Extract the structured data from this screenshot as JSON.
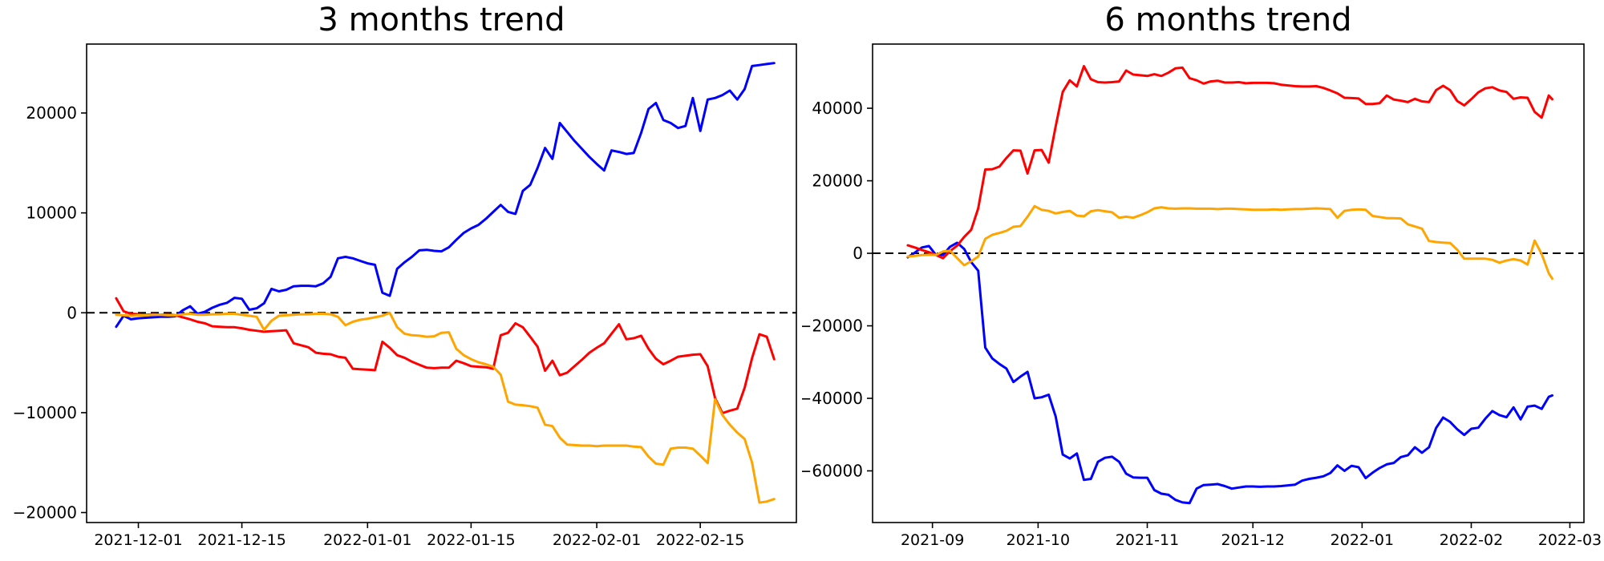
{
  "figure": {
    "background": "#ffffff"
  },
  "chart_data": [
    {
      "type": "line",
      "title": "3 months trend",
      "xlabel": "",
      "ylabel": "",
      "grid": false,
      "legend": null,
      "zero_line": {
        "present": true,
        "color": "#000000",
        "style": "dashed"
      },
      "xlim": [
        "2021-11-24",
        "2022-02-28"
      ],
      "ylim": [
        -21000,
        26900
      ],
      "y_ticks": [
        -20000,
        -10000,
        0,
        10000,
        20000
      ],
      "x_ticks": [
        {
          "date": "2021-12-01",
          "label": "2021-12-01"
        },
        {
          "date": "2021-12-15",
          "label": "2021-12-15"
        },
        {
          "date": "2022-01-01",
          "label": "2022-01-01"
        },
        {
          "date": "2022-01-15",
          "label": "2022-01-15"
        },
        {
          "date": "2022-02-01",
          "label": "2022-02-01"
        },
        {
          "date": "2022-02-15",
          "label": "2022-02-15"
        }
      ],
      "x": [
        "2021-11-28",
        "2021-11-29",
        "2021-11-30",
        "2021-12-01",
        "2021-12-02",
        "2021-12-03",
        "2021-12-04",
        "2021-12-05",
        "2021-12-06",
        "2021-12-07",
        "2021-12-08",
        "2021-12-09",
        "2021-12-10",
        "2021-12-11",
        "2021-12-12",
        "2021-12-13",
        "2021-12-14",
        "2021-12-15",
        "2021-12-16",
        "2021-12-17",
        "2021-12-18",
        "2021-12-19",
        "2021-12-20",
        "2021-12-21",
        "2021-12-22",
        "2021-12-23",
        "2021-12-24",
        "2021-12-25",
        "2021-12-26",
        "2021-12-27",
        "2021-12-28",
        "2021-12-29",
        "2021-12-30",
        "2021-12-31",
        "2022-01-01",
        "2022-01-02",
        "2022-01-03",
        "2022-01-04",
        "2022-01-05",
        "2022-01-06",
        "2022-01-07",
        "2022-01-08",
        "2022-01-09",
        "2022-01-10",
        "2022-01-11",
        "2022-01-12",
        "2022-01-13",
        "2022-01-14",
        "2022-01-15",
        "2022-01-16",
        "2022-01-17",
        "2022-01-18",
        "2022-01-19",
        "2022-01-20",
        "2022-01-21",
        "2022-01-22",
        "2022-01-23",
        "2022-01-24",
        "2022-01-25",
        "2022-01-26",
        "2022-01-27",
        "2022-01-28",
        "2022-01-29",
        "2022-01-30",
        "2022-01-31",
        "2022-02-01",
        "2022-02-02",
        "2022-02-03",
        "2022-02-04",
        "2022-02-05",
        "2022-02-06",
        "2022-02-07",
        "2022-02-08",
        "2022-02-09",
        "2022-02-10",
        "2022-02-11",
        "2022-02-12",
        "2022-02-13",
        "2022-02-14",
        "2022-02-15",
        "2022-02-16",
        "2022-02-17",
        "2022-02-18",
        "2022-02-19",
        "2022-02-20",
        "2022-02-21",
        "2022-02-22",
        "2022-02-23",
        "2022-02-24",
        "2022-02-25"
      ],
      "series": [
        {
          "name": "blue",
          "color": "#0000ff",
          "y": [
            -1400,
            -300,
            -650,
            -550,
            -500,
            -450,
            -400,
            -400,
            -350,
            250,
            650,
            -100,
            100,
            500,
            800,
            1000,
            1500,
            1400,
            300,
            450,
            950,
            2400,
            2150,
            2300,
            2650,
            2700,
            2700,
            2650,
            2950,
            3600,
            5450,
            5600,
            5450,
            5200,
            4950,
            4800,
            2000,
            1700,
            4400,
            5050,
            5600,
            6250,
            6300,
            6200,
            6150,
            6550,
            7300,
            8000,
            8450,
            8800,
            9400,
            10100,
            10800,
            10100,
            9900,
            12200,
            12800,
            14500,
            16500,
            15400,
            19000,
            18100,
            17200,
            16400,
            15600,
            14900,
            14250,
            16250,
            16100,
            15900,
            16000,
            18000,
            20400,
            21000,
            19300,
            19000,
            18500,
            18700,
            21500,
            18200,
            21350,
            21500,
            21800,
            22250,
            21350,
            22400,
            24700,
            24800,
            24900,
            25000
          ]
        },
        {
          "name": "red",
          "color": "#ff0000",
          "y": [
            1450,
            150,
            -100,
            -150,
            -200,
            -150,
            -200,
            -150,
            -250,
            -450,
            -650,
            -900,
            -1050,
            -1350,
            -1400,
            -1450,
            -1450,
            -1550,
            -1700,
            -1800,
            -1900,
            -1850,
            -1800,
            -1750,
            -3050,
            -3250,
            -3450,
            -4000,
            -4100,
            -4150,
            -4400,
            -4500,
            -5600,
            -5650,
            -5700,
            -5750,
            -2900,
            -3500,
            -4250,
            -4500,
            -4900,
            -5200,
            -5500,
            -5550,
            -5500,
            -5500,
            -4800,
            -5050,
            -5350,
            -5400,
            -5450,
            -5600,
            -2250,
            -2000,
            -1050,
            -1450,
            -2400,
            -3400,
            -5800,
            -4800,
            -6250,
            -6000,
            -5350,
            -4700,
            -4000,
            -3500,
            -3050,
            -2100,
            -1150,
            -2650,
            -2550,
            -2300,
            -3600,
            -4600,
            -5150,
            -4800,
            -4400,
            -4300,
            -4200,
            -4150,
            -5350,
            -8550,
            -10050,
            -9800,
            -9600,
            -7500,
            -4550,
            -2150,
            -2400,
            -4650
          ]
        },
        {
          "name": "orange",
          "color": "#ffa500",
          "y": [
            -200,
            -250,
            -300,
            -250,
            -250,
            -200,
            -200,
            -250,
            -250,
            -150,
            -100,
            -200,
            -200,
            -150,
            -150,
            -100,
            -100,
            -200,
            -300,
            -400,
            -1700,
            -800,
            -300,
            -250,
            -200,
            -150,
            -150,
            -100,
            -100,
            -150,
            -400,
            -1250,
            -900,
            -700,
            -600,
            -450,
            -300,
            0,
            -1450,
            -2100,
            -2250,
            -2300,
            -2400,
            -2350,
            -2000,
            -1950,
            -3600,
            -4250,
            -4650,
            -4950,
            -5150,
            -5400,
            -6200,
            -8900,
            -9200,
            -9250,
            -9350,
            -9500,
            -11200,
            -11350,
            -12500,
            -13200,
            -13250,
            -13300,
            -13300,
            -13350,
            -13300,
            -13300,
            -13300,
            -13300,
            -13400,
            -13450,
            -14400,
            -15100,
            -15200,
            -13600,
            -13500,
            -13500,
            -13600,
            -14300,
            -15050,
            -8650,
            -10250,
            -11200,
            -12000,
            -12650,
            -15000,
            -19000,
            -18900,
            -18650
          ]
        }
      ]
    },
    {
      "type": "line",
      "title": "6 months trend",
      "xlabel": "",
      "ylabel": "",
      "grid": false,
      "legend": null,
      "zero_line": {
        "present": true,
        "color": "#000000",
        "style": "dashed"
      },
      "xlim": [
        "2021-08-15",
        "2022-03-05"
      ],
      "ylim": [
        -74250,
        57700
      ],
      "y_ticks": [
        -60000,
        -40000,
        -20000,
        0,
        20000,
        40000
      ],
      "x_ticks": [
        {
          "date": "2021-09-01",
          "label": "2021-09"
        },
        {
          "date": "2021-10-01",
          "label": "2021-10"
        },
        {
          "date": "2021-11-01",
          "label": "2021-11"
        },
        {
          "date": "2021-12-01",
          "label": "2021-12"
        },
        {
          "date": "2022-01-01",
          "label": "2022-01"
        },
        {
          "date": "2022-02-01",
          "label": "2022-02"
        },
        {
          "date": "2022-03-01",
          "label": "2022-03"
        }
      ],
      "x": [
        "2021-08-25",
        "2021-08-27",
        "2021-08-29",
        "2021-08-31",
        "2021-09-02",
        "2021-09-04",
        "2021-09-06",
        "2021-09-08",
        "2021-09-10",
        "2021-09-12",
        "2021-09-14",
        "2021-09-16",
        "2021-09-18",
        "2021-09-20",
        "2021-09-22",
        "2021-09-24",
        "2021-09-26",
        "2021-09-28",
        "2021-09-30",
        "2021-10-02",
        "2021-10-04",
        "2021-10-06",
        "2021-10-08",
        "2021-10-10",
        "2021-10-12",
        "2021-10-14",
        "2021-10-16",
        "2021-10-18",
        "2021-10-20",
        "2021-10-22",
        "2021-10-24",
        "2021-10-26",
        "2021-10-28",
        "2021-10-30",
        "2021-11-01",
        "2021-11-03",
        "2021-11-05",
        "2021-11-07",
        "2021-11-09",
        "2021-11-11",
        "2021-11-13",
        "2021-11-15",
        "2021-11-17",
        "2021-11-19",
        "2021-11-21",
        "2021-11-23",
        "2021-11-25",
        "2021-11-27",
        "2021-11-29",
        "2021-12-01",
        "2021-12-03",
        "2021-12-05",
        "2021-12-07",
        "2021-12-09",
        "2021-12-11",
        "2021-12-13",
        "2021-12-15",
        "2021-12-17",
        "2021-12-19",
        "2021-12-21",
        "2021-12-23",
        "2021-12-25",
        "2021-12-27",
        "2021-12-29",
        "2021-12-31",
        "2022-01-02",
        "2022-01-04",
        "2022-01-06",
        "2022-01-08",
        "2022-01-10",
        "2022-01-12",
        "2022-01-14",
        "2022-01-16",
        "2022-01-18",
        "2022-01-20",
        "2022-01-22",
        "2022-01-24",
        "2022-01-26",
        "2022-01-28",
        "2022-01-30",
        "2022-02-01",
        "2022-02-03",
        "2022-02-05",
        "2022-02-07",
        "2022-02-09",
        "2022-02-11",
        "2022-02-13",
        "2022-02-15",
        "2022-02-17",
        "2022-02-19",
        "2022-02-21",
        "2022-02-23",
        "2022-02-24"
      ],
      "series": [
        {
          "name": "blue",
          "color": "#0000ff",
          "y": [
            -1100,
            200,
            1600,
            2000,
            -450,
            -500,
            1800,
            2900,
            1200,
            -2450,
            -4800,
            -26000,
            -29000,
            -30500,
            -31800,
            -35500,
            -34000,
            -32700,
            -40000,
            -39700,
            -39000,
            -45000,
            -55500,
            -56600,
            -55200,
            -62500,
            -62200,
            -57500,
            -56400,
            -56100,
            -57500,
            -60800,
            -61800,
            -61900,
            -61900,
            -65300,
            -66300,
            -66600,
            -68000,
            -68700,
            -68900,
            -64900,
            -63900,
            -63800,
            -63650,
            -64200,
            -64900,
            -64600,
            -64300,
            -64300,
            -64400,
            -64300,
            -64300,
            -64200,
            -64000,
            -63800,
            -62700,
            -62200,
            -61900,
            -61500,
            -60600,
            -58500,
            -60000,
            -58600,
            -59000,
            -62000,
            -60500,
            -59200,
            -58200,
            -57800,
            -56200,
            -55700,
            -53500,
            -55000,
            -53500,
            -48200,
            -45300,
            -46500,
            -48500,
            -50100,
            -48400,
            -48100,
            -45600,
            -43500,
            -44600,
            -45200,
            -42500,
            -45800,
            -42300,
            -42000,
            -42900,
            -39600,
            -39200
          ]
        },
        {
          "name": "red",
          "color": "#ff0000",
          "y": [
            2200,
            1600,
            900,
            300,
            -450,
            -1350,
            600,
            2100,
            4500,
            6500,
            12400,
            23100,
            23200,
            23900,
            26300,
            28400,
            28300,
            22000,
            28400,
            28500,
            25000,
            35000,
            44500,
            47700,
            46000,
            51600,
            48000,
            47200,
            47100,
            47200,
            47400,
            50400,
            49300,
            49100,
            48900,
            49400,
            48900,
            49800,
            51000,
            51200,
            48300,
            47700,
            46800,
            47400,
            47600,
            47100,
            47100,
            47200,
            46900,
            47000,
            47000,
            47000,
            46900,
            46500,
            46300,
            46100,
            46000,
            46000,
            46100,
            45600,
            44900,
            44100,
            42900,
            42800,
            42700,
            41200,
            41200,
            41400,
            43500,
            42400,
            42100,
            41700,
            42600,
            41900,
            41700,
            45000,
            46200,
            45000,
            42000,
            40800,
            42500,
            44400,
            45500,
            45800,
            44900,
            44500,
            42600,
            43000,
            42900,
            39000,
            37400,
            43500,
            42500
          ]
        },
        {
          "name": "orange",
          "color": "#ffa500",
          "y": [
            -900,
            -700,
            -500,
            -400,
            -450,
            500,
            700,
            -1300,
            -3300,
            -2200,
            -900,
            4000,
            5100,
            5600,
            6200,
            7300,
            7500,
            10100,
            13000,
            12000,
            11700,
            11000,
            11400,
            11700,
            10400,
            10200,
            11600,
            11900,
            11600,
            11300,
            9800,
            10100,
            9800,
            10500,
            11300,
            12400,
            12700,
            12400,
            12300,
            12400,
            12400,
            12300,
            12300,
            12300,
            12200,
            12300,
            12300,
            12200,
            12100,
            12000,
            12000,
            12000,
            12100,
            12000,
            12100,
            12200,
            12200,
            12300,
            12400,
            12300,
            12200,
            9800,
            11700,
            12000,
            12100,
            12000,
            10300,
            10000,
            9700,
            9700,
            9600,
            8000,
            7400,
            6800,
            3400,
            3100,
            2950,
            2850,
            1000,
            -1500,
            -1500,
            -1500,
            -1500,
            -1800,
            -2600,
            -2000,
            -1600,
            -2000,
            -3100,
            3500,
            -200,
            -5500,
            -7000
          ]
        }
      ]
    }
  ]
}
